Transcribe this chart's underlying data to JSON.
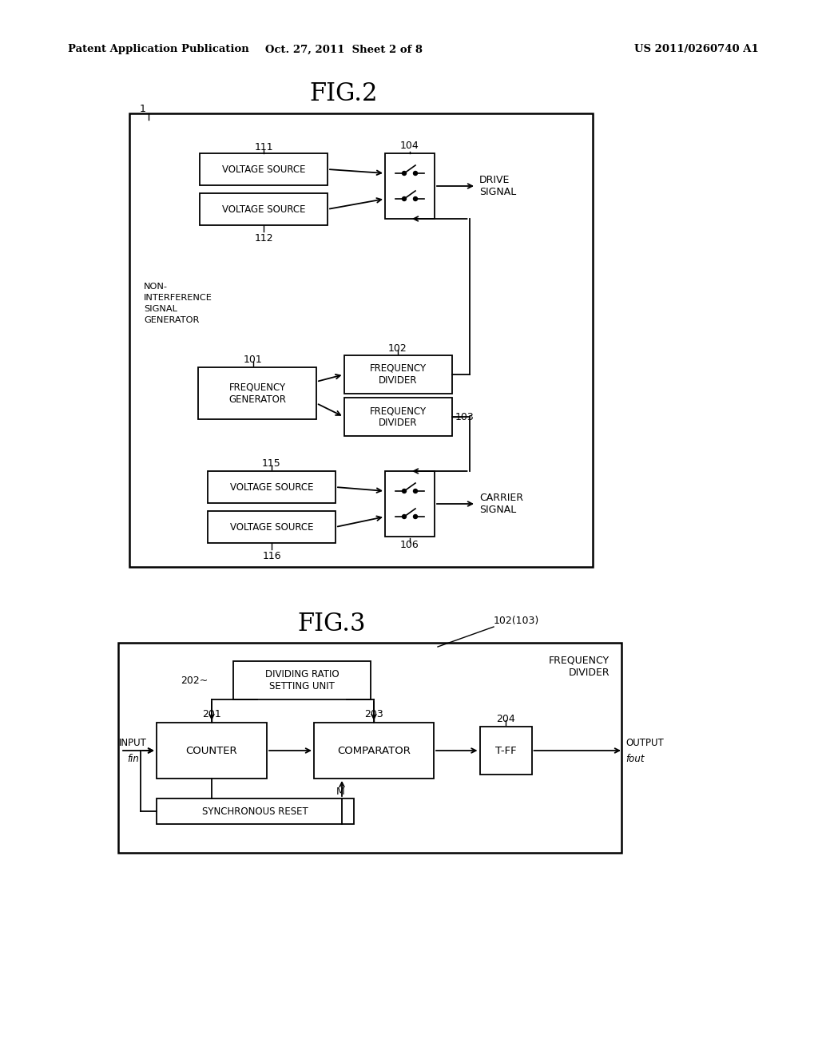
{
  "bg_color": "#ffffff",
  "text_color": "#000000",
  "header_left": "Patent Application Publication",
  "header_center": "Oct. 27, 2011  Sheet 2 of 8",
  "header_right": "US 2011/0260740 A1",
  "fig2_title": "FIG.2",
  "fig3_title": "FIG.3"
}
